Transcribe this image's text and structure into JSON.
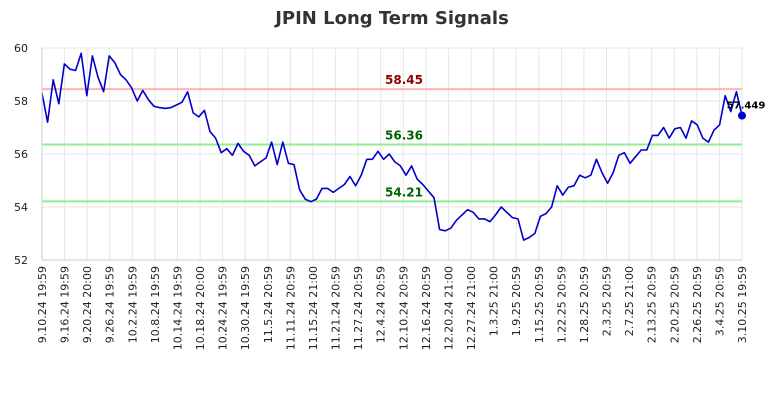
{
  "chart_data": {
    "type": "line",
    "title": "JPIN Long Term Signals",
    "xlabel": "",
    "ylabel": "",
    "ylim": [
      52,
      60
    ],
    "yticks": [
      52,
      54,
      56,
      58,
      60
    ],
    "grid": true,
    "xtick_labels": [
      "9.10.24 19:59",
      "9.16.24 19:59",
      "9.20.24 20:00",
      "9.26.24 19:59",
      "10.2.24 19:59",
      "10.8.24 19:59",
      "10.14.24 19:59",
      "10.18.24 20:00",
      "10.24.24 19:59",
      "10.30.24 19:59",
      "11.5.24 20:59",
      "11.11.24 20:59",
      "11.15.24 21:00",
      "11.21.24 20:59",
      "11.27.24 20:59",
      "12.4.24 20:59",
      "12.10.24 20:59",
      "12.16.24 20:59",
      "12.20.24 21:00",
      "12.27.24 21:00",
      "1.3.25 21:00",
      "1.9.25 20:59",
      "1.15.25 20:59",
      "1.22.25 20:59",
      "1.28.25 20:59",
      "2.3.25 20:59",
      "2.7.25 21:00",
      "2.13.25 20:59",
      "2.20.25 20:59",
      "2.26.25 20:59",
      "3.4.25 20:59",
      "3.10.25 19:59"
    ],
    "series": [
      {
        "color": "#0000cc",
        "values": [
          58.3,
          57.2,
          58.8,
          57.9,
          59.4,
          59.2,
          59.15,
          59.8,
          58.2,
          59.7,
          58.9,
          58.35,
          59.7,
          59.45,
          59.0,
          58.8,
          58.5,
          58.0,
          58.4,
          58.05,
          57.8,
          57.75,
          57.72,
          57.75,
          57.85,
          57.95,
          58.35,
          57.55,
          57.4,
          57.65,
          56.85,
          56.6,
          56.05,
          56.2,
          55.95,
          56.4,
          56.1,
          55.95,
          55.55,
          55.7,
          55.85,
          56.45,
          55.6,
          56.45,
          55.65,
          55.6,
          54.65,
          54.3,
          54.2,
          54.3,
          54.7,
          54.7,
          54.55,
          54.7,
          54.85,
          55.15,
          54.8,
          55.2,
          55.8,
          55.8,
          56.1,
          55.8,
          56.0,
          55.7,
          55.55,
          55.2,
          55.55,
          55.05,
          54.85,
          54.6,
          54.35,
          53.15,
          53.1,
          53.2,
          53.5,
          53.7,
          53.9,
          53.8,
          53.55,
          53.55,
          53.45,
          53.7,
          54.0,
          53.8,
          53.6,
          53.55,
          52.75,
          52.85,
          53.0,
          53.65,
          53.75,
          54.0,
          54.8,
          54.45,
          54.75,
          54.8,
          55.2,
          55.1,
          55.2,
          55.8,
          55.3,
          54.9,
          55.3,
          55.95,
          56.05,
          55.65,
          55.9,
          56.15,
          56.15,
          56.7,
          56.7,
          57.0,
          56.6,
          56.95,
          57.0,
          56.6,
          57.25,
          57.1,
          56.6,
          56.45,
          56.9,
          57.1,
          58.2,
          57.6,
          58.35,
          57.449
        ]
      }
    ],
    "levels": [
      {
        "value": 58.45,
        "label": "58.45",
        "line_color": "#ffb3b3",
        "text_color": "#8b0000"
      },
      {
        "value": 56.36,
        "label": "56.36",
        "line_color": "#90ee90",
        "text_color": "#006400"
      },
      {
        "value": 54.21,
        "label": "54.21",
        "line_color": "#90ee90",
        "text_color": "#006400"
      }
    ],
    "last_value_label": "57.449"
  }
}
